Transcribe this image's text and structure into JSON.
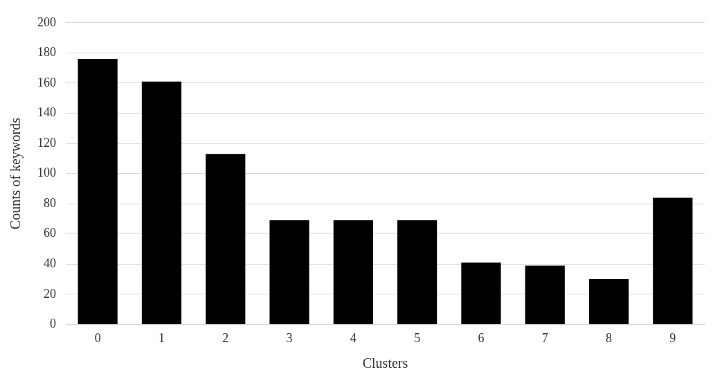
{
  "chart_data": {
    "type": "bar",
    "xlabel": "Clusters",
    "ylabel": "Counts of keywords",
    "categories": [
      "0",
      "1",
      "2",
      "3",
      "4",
      "5",
      "6",
      "7",
      "8",
      "9"
    ],
    "values": [
      176,
      161,
      113,
      69,
      69,
      69,
      41,
      39,
      30,
      84
    ],
    "color": "#000000",
    "ylim": [
      0,
      200
    ],
    "yticks": [
      0,
      20,
      40,
      60,
      80,
      100,
      120,
      140,
      160,
      180,
      200
    ],
    "grid": "y"
  }
}
